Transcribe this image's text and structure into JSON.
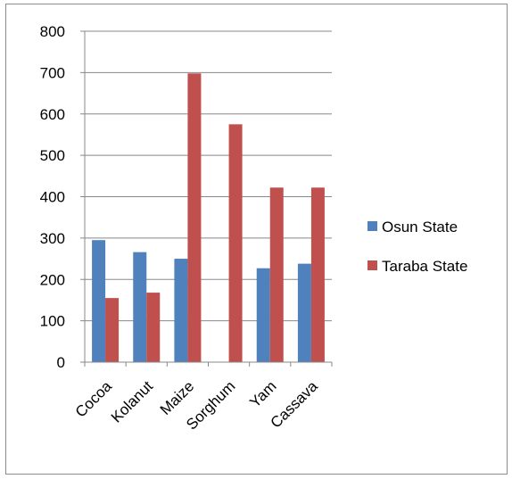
{
  "chart_data": {
    "type": "bar",
    "categories": [
      "Cocoa",
      "Kolanut",
      "Maize",
      "Sorghum",
      "Yam",
      "Cassava"
    ],
    "series": [
      {
        "name": "Osun State",
        "values": [
          295,
          266,
          250,
          0,
          227,
          238
        ],
        "color": "#4F81BD"
      },
      {
        "name": "Taraba State",
        "values": [
          155,
          168,
          698,
          575,
          422,
          422
        ],
        "color": "#C0504D"
      }
    ],
    "yticks": [
      0,
      100,
      200,
      300,
      400,
      500,
      600,
      700,
      800
    ],
    "ylim": [
      0,
      800
    ],
    "grid": true,
    "legend": "right",
    "title": "",
    "xlabel": "",
    "ylabel": ""
  }
}
